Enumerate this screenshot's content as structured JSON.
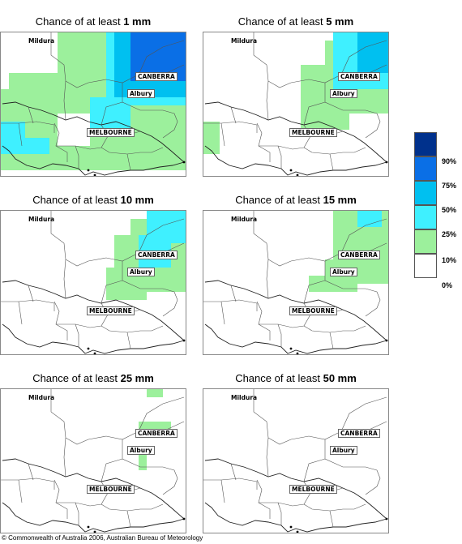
{
  "panels": [
    {
      "id": "p1",
      "title_prefix": "Chance of at least",
      "threshold": "1 mm"
    },
    {
      "id": "p5",
      "title_prefix": "Chance of at least",
      "threshold": "5 mm"
    },
    {
      "id": "p10",
      "title_prefix": "Chance of at least",
      "threshold": "10 mm"
    },
    {
      "id": "p15",
      "title_prefix": "Chance of at least",
      "threshold": "15 mm"
    },
    {
      "id": "p25",
      "title_prefix": "Chance of at least",
      "threshold": "25 mm"
    },
    {
      "id": "p50",
      "title_prefix": "Chance of at least",
      "threshold": "50 mm"
    }
  ],
  "cities": {
    "mildura": "Mildura",
    "canberra": "CANBERRA",
    "albury": "Albury",
    "melbourne": "MELBOURNE"
  },
  "legend": {
    "labels": [
      "90%",
      "75%",
      "50%",
      "25%",
      "10%",
      "0%"
    ],
    "colors": [
      "#00318c",
      "#0a6fe6",
      "#00c0f0",
      "#3ff0ff",
      "#9cf09c",
      "#ffffff"
    ]
  },
  "colors": {
    "green": "#9cf09c",
    "cyan": "#3ff0ff",
    "light_blue": "#00c0f0",
    "blue": "#0a6fe6",
    "boundary": "#555555"
  },
  "copyright": "© Commonwealth of Australia 2006, Australian Bureau of Meteorology"
}
